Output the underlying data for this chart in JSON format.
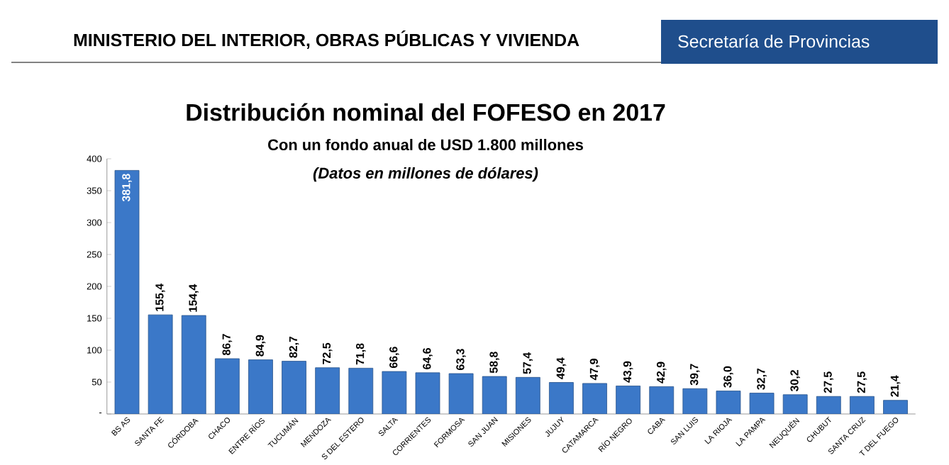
{
  "chart_data": {
    "type": "bar",
    "title": "Distribución nominal del FOFESO en 2017",
    "subtitle": "Con un fondo anual de USD 1.800 millones",
    "annotations": [
      "MINISTERIO DEL INTERIOR, OBRAS PÚBLICAS Y VIVIENDA",
      "Secretaría de Provincias",
      "*(Datos en millones de dólares)*"
    ],
    "categories": [
      "BS AS",
      "SANTA FE",
      "CÓRDOBA",
      "CHACO",
      "ENTRE RÍOS",
      "TUCUMÁN",
      "MENDOZA",
      "S DEL ESTERO",
      "SALTA",
      "CORRIENTES",
      "FORMOSA",
      "SAN JUAN",
      "MISIONES",
      "JUJUY",
      "CATAMARCA",
      "RÍO NEGRO",
      "CABA",
      "SAN LUIS",
      "LA RIOJA",
      "LA PAMPA",
      "NEUQUÉN",
      "CHUBUT",
      "SANTA CRUZ",
      "T DEL FUEGO"
    ],
    "values": [
      381.8,
      155.4,
      154.4,
      86.7,
      84.9,
      82.7,
      72.5,
      71.8,
      66.6,
      64.6,
      63.3,
      58.8,
      57.4,
      49.4,
      47.9,
      43.9,
      42.9,
      39.7,
      36.0,
      32.7,
      30.2,
      27.5,
      27.5,
      21.4
    ],
    "value_labels": [
      "381,8",
      "155,4",
      "154,4",
      "86,7",
      "84,9",
      "82,7",
      "72,5",
      "71,8",
      "66,6",
      "64,6",
      "63,3",
      "58,8",
      "57,4",
      "49,4",
      "47,9",
      "43,9",
      "42,9",
      "39,7",
      "36,0",
      "32,7",
      "30,2",
      "27,5",
      "27,5",
      "21,4"
    ],
    "color": "#3b78c8",
    "ylim": [
      0,
      400
    ],
    "yticks": [
      {
        "value": 0,
        "label": "-"
      },
      50,
      100,
      150,
      200,
      250,
      300,
      350,
      400
    ],
    "grid": false
  }
}
